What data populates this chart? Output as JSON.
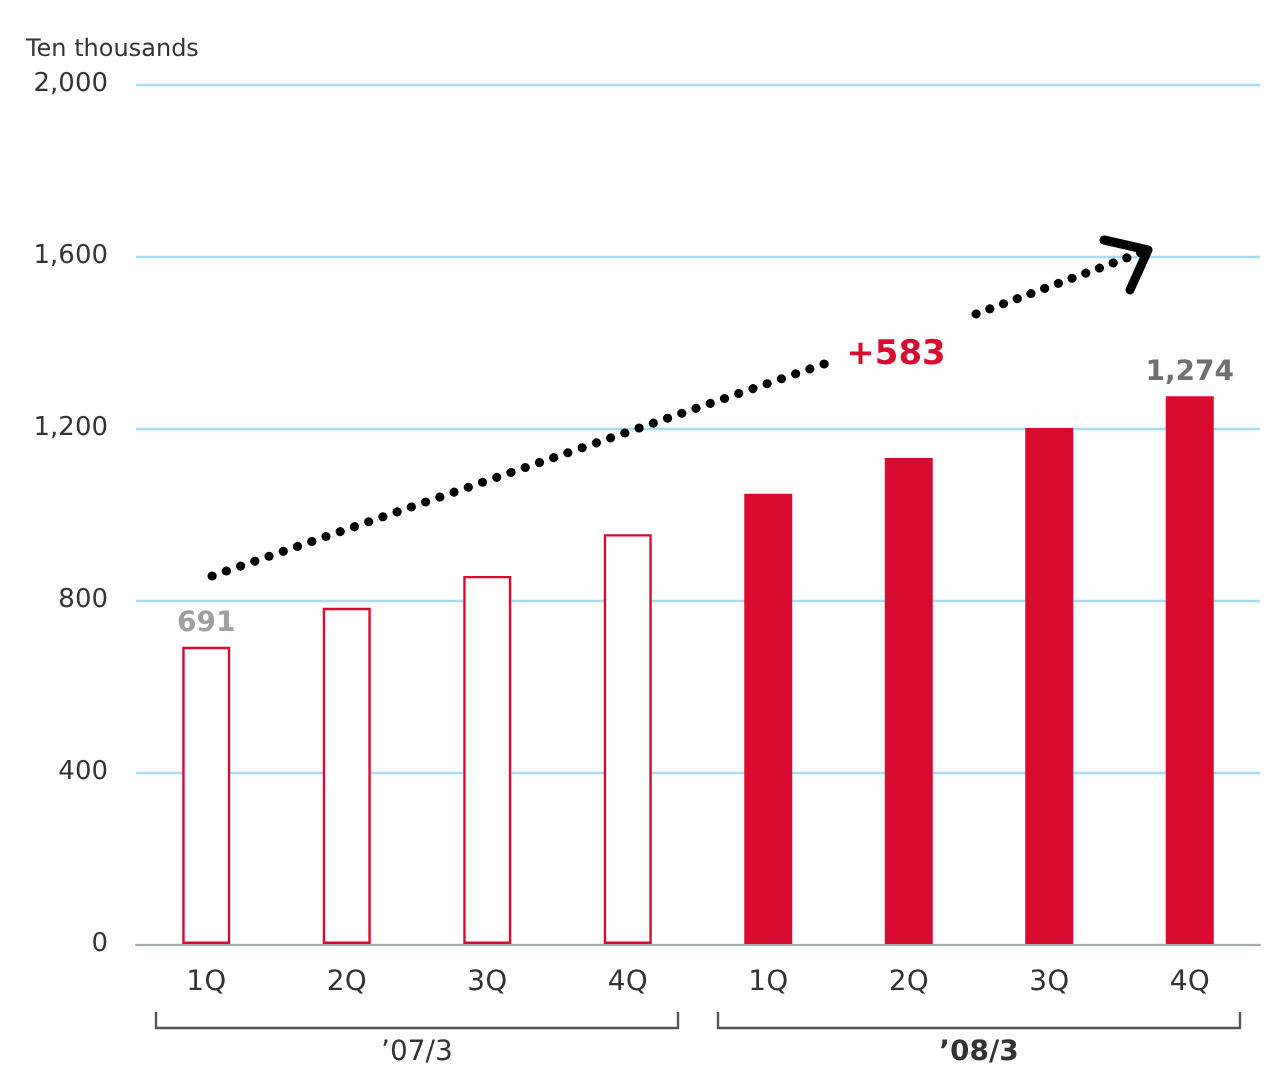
{
  "chart_data": {
    "type": "bar",
    "ylabel": "Ten thousands",
    "categories": [
      "1Q",
      "2Q",
      "3Q",
      "4Q",
      "1Q",
      "2Q",
      "3Q",
      "4Q"
    ],
    "values": [
      691,
      782,
      856,
      953,
      1047,
      1130,
      1200,
      1274
    ],
    "colors": [
      "#ffffff",
      "#ffffff",
      "#ffffff",
      "#ffffff",
      "#d70c30",
      "#d70c30",
      "#d70c30",
      "#d70c30"
    ],
    "value_labels": [
      "691",
      null,
      null,
      null,
      null,
      null,
      null,
      "1,274"
    ],
    "ylim": [
      0,
      2000
    ],
    "yticks": [
      0,
      400,
      800,
      {
        "value": 1200,
        "label": "1,200"
      },
      {
        "value": 1600,
        "label": "1,600"
      },
      {
        "value": 2000,
        "label": "2,000"
      }
    ],
    "grid": "y",
    "annotations": [
      "+583",
      "’07/3",
      "’08/3"
    ]
  }
}
